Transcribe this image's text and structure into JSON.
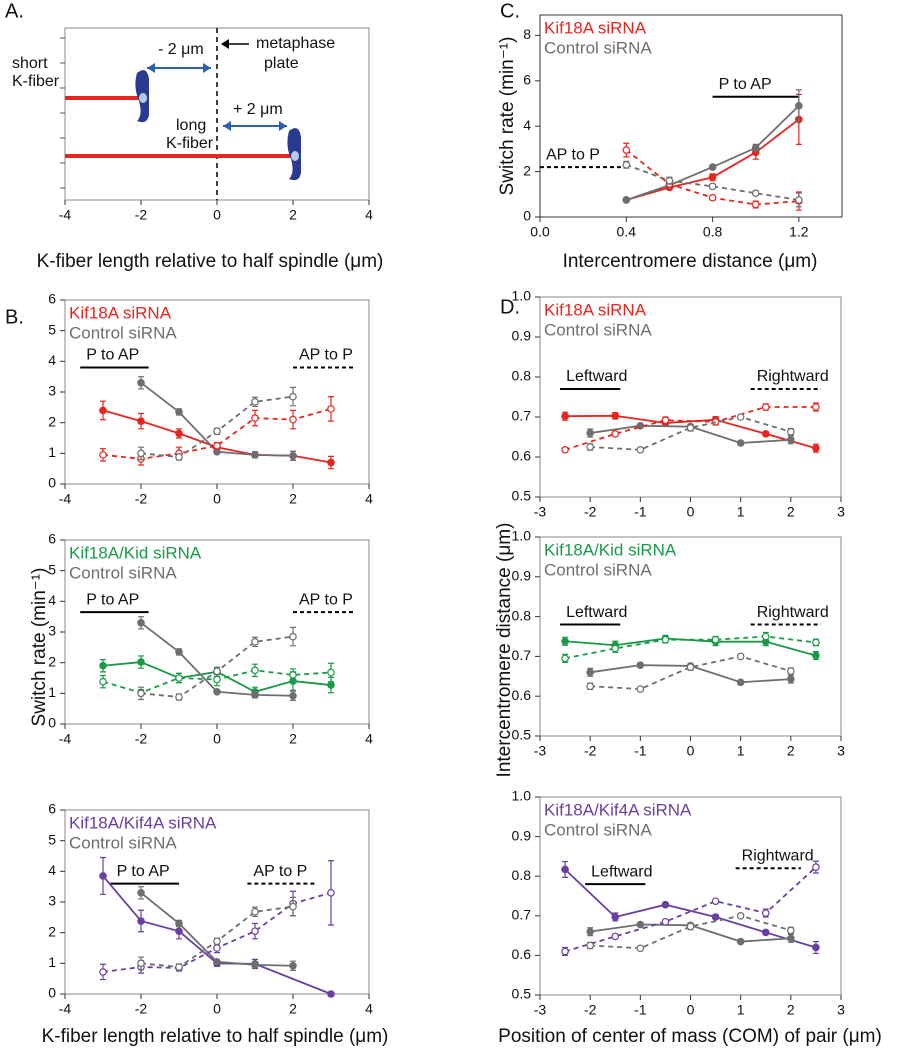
{
  "chart_data": [
    {
      "type": "diagram",
      "panel_label": "A.",
      "xlim": [
        -4,
        4
      ],
      "xticks": [
        -4,
        -2,
        0,
        2,
        4
      ],
      "xlabel": "K-fiber length relative to half spindle (μm)",
      "fiber_ends": [
        -2,
        2
      ],
      "fiber_color": "#e8251f",
      "kinetochore_color": "#2a3a8f",
      "texts": {
        "short": "short",
        "short_fiber": "K-fiber",
        "long": "long",
        "long_fiber": "K-fiber",
        "minus": "- 2 μm",
        "plus": "+ 2 μm",
        "plate1": "metaphase",
        "plate2": "plate"
      }
    },
    {
      "type": "line",
      "panel_label": "B.",
      "xlim": [
        -4,
        4
      ],
      "xticks": [
        -4,
        -2,
        0,
        2,
        4
      ],
      "ylim": [
        0,
        6
      ],
      "yticks": [
        0,
        1,
        2,
        3,
        4,
        5,
        6
      ],
      "annotations": [
        {
          "text": "P to AP",
          "style": "solid"
        },
        {
          "text": "AP to P",
          "style": "dashed"
        }
      ],
      "series": [
        {
          "name": "Kif18A siRNA",
          "color": "#e8251f",
          "style": "solid",
          "x": [
            -3,
            -2,
            -1,
            0,
            1,
            2,
            3
          ],
          "values": [
            2.4,
            2.05,
            1.65,
            1.2,
            0.95,
            0.92,
            0.7
          ],
          "errors": [
            0.3,
            0.25,
            0.15,
            0.1,
            0.1,
            0.15,
            0.2
          ]
        },
        {
          "name": "Control siRNA",
          "color": "#6d6e70",
          "style": "solid",
          "x": [
            -2,
            -1,
            0,
            1,
            2
          ],
          "values": [
            3.3,
            2.35,
            1.05,
            0.95,
            0.92
          ],
          "errors": [
            0.2,
            0.1,
            0.05,
            0.1,
            0.15
          ]
        },
        {
          "name": "Kif18A siRNA",
          "color": "#e8251f",
          "style": "dashed",
          "x": [
            -3,
            -2,
            -1,
            0,
            1,
            2,
            3
          ],
          "values": [
            0.95,
            0.82,
            1.0,
            1.25,
            2.15,
            2.1,
            2.45
          ],
          "errors": [
            0.2,
            0.2,
            0.2,
            0.1,
            0.25,
            0.3,
            0.4
          ]
        },
        {
          "name": "Control siRNA",
          "color": "#6d6e70",
          "style": "dashed",
          "x": [
            -2,
            -1,
            0,
            1,
            2
          ],
          "values": [
            1.0,
            0.88,
            1.72,
            2.68,
            2.85
          ],
          "errors": [
            0.2,
            0.1,
            0.1,
            0.15,
            0.3
          ]
        }
      ]
    },
    {
      "type": "line",
      "ylabel": "Switch rate (min⁻¹)",
      "xlim": [
        -4,
        4
      ],
      "xticks": [
        -4,
        -2,
        0,
        2,
        4
      ],
      "ylim": [
        0,
        6
      ],
      "yticks": [
        0,
        1,
        2,
        3,
        4,
        5,
        6
      ],
      "annotations": [
        {
          "text": "P to AP",
          "style": "solid"
        },
        {
          "text": "AP to P",
          "style": "dashed"
        }
      ],
      "series": [
        {
          "name": "Kif18A/Kid siRNA",
          "color": "#1a9a48",
          "style": "solid",
          "x": [
            -3,
            -2,
            -1,
            0,
            1,
            2,
            3
          ],
          "values": [
            1.9,
            2.02,
            1.5,
            1.7,
            1.05,
            1.4,
            1.27
          ],
          "errors": [
            0.2,
            0.2,
            0.15,
            0.15,
            0.15,
            0.3,
            0.25
          ]
        },
        {
          "name": "Control siRNA",
          "color": "#6d6e70",
          "style": "solid",
          "x": [
            -2,
            -1,
            0,
            1,
            2
          ],
          "values": [
            3.3,
            2.35,
            1.05,
            0.95,
            0.92
          ],
          "errors": [
            0.2,
            0.1,
            0.05,
            0.1,
            0.15
          ]
        },
        {
          "name": "Kif18A/Kid siRNA",
          "color": "#1a9a48",
          "style": "dashed",
          "x": [
            -3,
            -2,
            -1,
            0,
            1,
            2,
            3
          ],
          "values": [
            1.38,
            1.02,
            1.5,
            1.45,
            1.75,
            1.6,
            1.68
          ],
          "errors": [
            0.2,
            0.1,
            0.15,
            0.2,
            0.2,
            0.2,
            0.3
          ]
        },
        {
          "name": "Control siRNA",
          "color": "#6d6e70",
          "style": "dashed",
          "x": [
            -2,
            -1,
            0,
            1,
            2
          ],
          "values": [
            1.0,
            0.88,
            1.72,
            2.68,
            2.85
          ],
          "errors": [
            0.2,
            0.1,
            0.1,
            0.15,
            0.3
          ]
        }
      ]
    },
    {
      "type": "line",
      "xlabel": "K-fiber length relative to half spindle (μm)",
      "xlim": [
        -4,
        4
      ],
      "xticks": [
        -4,
        -2,
        0,
        2,
        4
      ],
      "ylim": [
        0,
        6
      ],
      "yticks": [
        0,
        1,
        2,
        3,
        4,
        5,
        6
      ],
      "annotations": [
        {
          "text": "P to AP",
          "style": "solid"
        },
        {
          "text": "AP to P",
          "style": "dashed"
        }
      ],
      "series": [
        {
          "name": "Kif18A/Kif4A siRNA",
          "color": "#6a3fa0",
          "style": "solid",
          "x": [
            -3,
            -2,
            -1,
            0,
            1,
            3
          ],
          "values": [
            3.85,
            2.38,
            2.05,
            1.0,
            0.98,
            0.0
          ],
          "errors": [
            0.6,
            0.35,
            0.25,
            0.1,
            0.15,
            0
          ]
        },
        {
          "name": "Control siRNA",
          "color": "#6d6e70",
          "style": "solid",
          "x": [
            -2,
            -1,
            0,
            1,
            2
          ],
          "values": [
            3.3,
            2.3,
            1.05,
            0.95,
            0.92
          ],
          "errors": [
            0.2,
            0.1,
            0.05,
            0.1,
            0.15
          ]
        },
        {
          "name": "Kif18A/Kif4A siRNA",
          "color": "#6a3fa0",
          "style": "dashed",
          "x": [
            -3,
            -2,
            -1,
            0,
            1,
            2,
            3
          ],
          "values": [
            0.72,
            0.88,
            0.85,
            1.5,
            2.05,
            2.95,
            3.3
          ],
          "errors": [
            0.25,
            0.2,
            0.1,
            0.15,
            0.25,
            0.4,
            1.05
          ]
        },
        {
          "name": "Control siRNA",
          "color": "#6d6e70",
          "style": "dashed",
          "x": [
            -2,
            -1,
            0,
            1,
            2
          ],
          "values": [
            1.0,
            0.88,
            1.72,
            2.68,
            2.85
          ],
          "errors": [
            0.2,
            0.1,
            0.1,
            0.15,
            0.3
          ]
        }
      ]
    },
    {
      "type": "line",
      "panel_label": "C.",
      "ylabel": "Switch rate (min⁻¹)",
      "xlabel": "Intercentromere distance (μm)",
      "xlim": [
        0,
        1.4
      ],
      "xticks": [
        {
          "value": 0,
          "label": "0.0"
        },
        0.4,
        0.8,
        1.2
      ],
      "ylim": [
        0,
        8.9
      ],
      "yticks": [
        0,
        2,
        4,
        6,
        8
      ],
      "annotations": [
        {
          "text": "P to AP",
          "style": "solid"
        },
        {
          "text": "AP to P",
          "style": "dashed"
        }
      ],
      "series": [
        {
          "name": "Kif18A siRNA",
          "color": "#e8251f",
          "style": "solid",
          "x": [
            0.4,
            0.6,
            0.8,
            1.0,
            1.2
          ],
          "values": [
            0.75,
            1.3,
            1.75,
            2.85,
            4.3
          ],
          "errors": [
            0.05,
            0.1,
            0.15,
            0.3,
            1.1
          ]
        },
        {
          "name": "Control siRNA",
          "color": "#6d6e70",
          "style": "solid",
          "x": [
            0.4,
            0.6,
            0.8,
            1.0,
            1.2
          ],
          "values": [
            0.75,
            1.4,
            2.2,
            3.05,
            4.9
          ],
          "errors": [
            0.05,
            0.1,
            0.1,
            0.15,
            0.7
          ]
        },
        {
          "name": "Kif18A siRNA",
          "color": "#e8251f",
          "style": "dashed",
          "x": [
            0.4,
            0.6,
            0.8,
            1.0,
            1.2
          ],
          "values": [
            2.95,
            1.45,
            0.85,
            0.55,
            0.7
          ],
          "errors": [
            0.3,
            0.15,
            0.1,
            0.15,
            0.4
          ]
        },
        {
          "name": "Control siRNA",
          "color": "#6d6e70",
          "style": "dashed",
          "x": [
            0.4,
            0.6,
            0.8,
            1.0,
            1.2
          ],
          "values": [
            2.3,
            1.6,
            1.35,
            1.05,
            0.75
          ],
          "errors": [
            0.15,
            0.15,
            0.1,
            0.1,
            0.3
          ]
        }
      ]
    },
    {
      "type": "line",
      "panel_label": "D.",
      "xlim": [
        -3,
        3
      ],
      "xticks": [
        -3,
        -2,
        -1,
        0,
        1,
        2,
        3
      ],
      "ylim": [
        0.5,
        1.0
      ],
      "yticks": [
        0.5,
        0.6,
        0.7,
        0.8,
        0.9,
        {
          "value": 1,
          "label": "1.0"
        }
      ],
      "annotations": [
        {
          "text": "Leftward",
          "style": "solid"
        },
        {
          "text": "Rightward",
          "style": "dashed"
        }
      ],
      "series": [
        {
          "name": "Kif18A siRNA",
          "color": "#e8251f",
          "style": "solid",
          "x": [
            -2.5,
            -1.5,
            -0.5,
            0.5,
            1.5,
            2.5
          ],
          "values": [
            0.702,
            0.703,
            0.685,
            0.693,
            0.658,
            0.622
          ],
          "errors": [
            0.01,
            0.008,
            0.008,
            0.008,
            0.005,
            0.01
          ]
        },
        {
          "name": "Control siRNA",
          "color": "#6d6e70",
          "style": "solid",
          "x": [
            -2,
            -1,
            0,
            1,
            2
          ],
          "values": [
            0.66,
            0.678,
            0.676,
            0.635,
            0.643
          ],
          "errors": [
            0.01,
            0.005,
            0.005,
            0.005,
            0.01
          ]
        },
        {
          "name": "Kif18A siRNA",
          "color": "#e8251f",
          "style": "dashed",
          "x": [
            -2.5,
            -1.5,
            -0.5,
            0.5,
            1.5,
            2.5
          ],
          "values": [
            0.618,
            0.658,
            0.692,
            0.688,
            0.725,
            0.725
          ],
          "errors": [
            0.005,
            0.005,
            0.008,
            0.008,
            0.008,
            0.01
          ]
        },
        {
          "name": "Control siRNA",
          "color": "#6d6e70",
          "style": "dashed",
          "x": [
            -2,
            -1,
            0,
            1,
            2
          ],
          "values": [
            0.625,
            0.618,
            0.673,
            0.7,
            0.663
          ],
          "errors": [
            0.008,
            0.005,
            0.008,
            0.005,
            0.008
          ]
        }
      ]
    },
    {
      "type": "line",
      "ylabel": "Intercentromere distance (μm)",
      "xlim": [
        -3,
        3
      ],
      "xticks": [
        -3,
        -2,
        -1,
        0,
        1,
        2,
        3
      ],
      "ylim": [
        0.5,
        1.0
      ],
      "yticks": [
        0.5,
        0.6,
        0.7,
        0.8,
        0.9,
        {
          "value": 1,
          "label": "1.0"
        }
      ],
      "annotations": [
        {
          "text": "Leftward",
          "style": "solid"
        },
        {
          "text": "Rightward",
          "style": "dashed"
        }
      ],
      "series": [
        {
          "name": "Kif18A/Kid siRNA",
          "color": "#1a9a48",
          "style": "solid",
          "x": [
            -2.5,
            -1.5,
            -0.5,
            0.5,
            1.5,
            2.5
          ],
          "values": [
            0.738,
            0.728,
            0.745,
            0.737,
            0.737,
            0.702
          ],
          "errors": [
            0.01,
            0.01,
            0.008,
            0.01,
            0.01,
            0.01
          ]
        },
        {
          "name": "Control siRNA",
          "color": "#6d6e70",
          "style": "solid",
          "x": [
            -2,
            -1,
            0,
            1,
            2
          ],
          "values": [
            0.66,
            0.678,
            0.676,
            0.635,
            0.643
          ],
          "errors": [
            0.01,
            0.005,
            0.005,
            0.005,
            0.01
          ]
        },
        {
          "name": "Kif18A/Kid siRNA",
          "color": "#1a9a48",
          "style": "dashed",
          "x": [
            -2.5,
            -1.5,
            -0.5,
            0.5,
            1.5,
            2.5
          ],
          "values": [
            0.695,
            0.72,
            0.742,
            0.742,
            0.75,
            0.735
          ],
          "errors": [
            0.01,
            0.01,
            0.008,
            0.008,
            0.01,
            0.008
          ]
        },
        {
          "name": "Control siRNA",
          "color": "#6d6e70",
          "style": "dashed",
          "x": [
            -2,
            -1,
            0,
            1,
            2
          ],
          "values": [
            0.625,
            0.618,
            0.673,
            0.7,
            0.663
          ],
          "errors": [
            0.008,
            0.005,
            0.008,
            0.005,
            0.008
          ]
        }
      ]
    },
    {
      "type": "line",
      "xlabel": "Position of center of mass (COM) of pair (μm)",
      "xlim": [
        -3,
        3
      ],
      "xticks": [
        -3,
        -2,
        -1,
        0,
        1,
        2,
        3
      ],
      "ylim": [
        0.5,
        1.0
      ],
      "yticks": [
        0.5,
        0.6,
        0.7,
        0.8,
        0.9,
        {
          "value": 1,
          "label": "1.0"
        }
      ],
      "annotations": [
        {
          "text": "Leftward",
          "style": "solid"
        },
        {
          "text": "Rightward",
          "style": "dashed"
        }
      ],
      "series": [
        {
          "name": "Kif18A/Kif4A siRNA",
          "color": "#6a3fa0",
          "style": "solid",
          "x": [
            -2.5,
            -1.5,
            -0.5,
            0.5,
            1.5,
            2.5
          ],
          "values": [
            0.817,
            0.697,
            0.728,
            0.697,
            0.658,
            0.62
          ],
          "errors": [
            0.02,
            0.01,
            0.005,
            0.005,
            0.005,
            0.015
          ]
        },
        {
          "name": "Control siRNA",
          "color": "#6d6e70",
          "style": "solid",
          "x": [
            -2,
            -1,
            0,
            1,
            2
          ],
          "values": [
            0.66,
            0.678,
            0.676,
            0.635,
            0.643
          ],
          "errors": [
            0.01,
            0.005,
            0.005,
            0.005,
            0.01
          ]
        },
        {
          "name": "Kif18A/Kif4A siRNA",
          "color": "#6a3fa0",
          "style": "dashed",
          "x": [
            -2.5,
            -1.5,
            -0.5,
            0.5,
            1.5,
            2.5
          ],
          "values": [
            0.61,
            0.648,
            0.685,
            0.737,
            0.707,
            0.823
          ],
          "errors": [
            0.01,
            0.005,
            0.005,
            0.005,
            0.01,
            0.015
          ]
        },
        {
          "name": "Control siRNA",
          "color": "#6d6e70",
          "style": "dashed",
          "x": [
            -2,
            -1,
            0,
            1,
            2
          ],
          "values": [
            0.625,
            0.618,
            0.673,
            0.7,
            0.663
          ],
          "errors": [
            0.008,
            0.005,
            0.008,
            0.005,
            0.008
          ]
        }
      ]
    }
  ]
}
